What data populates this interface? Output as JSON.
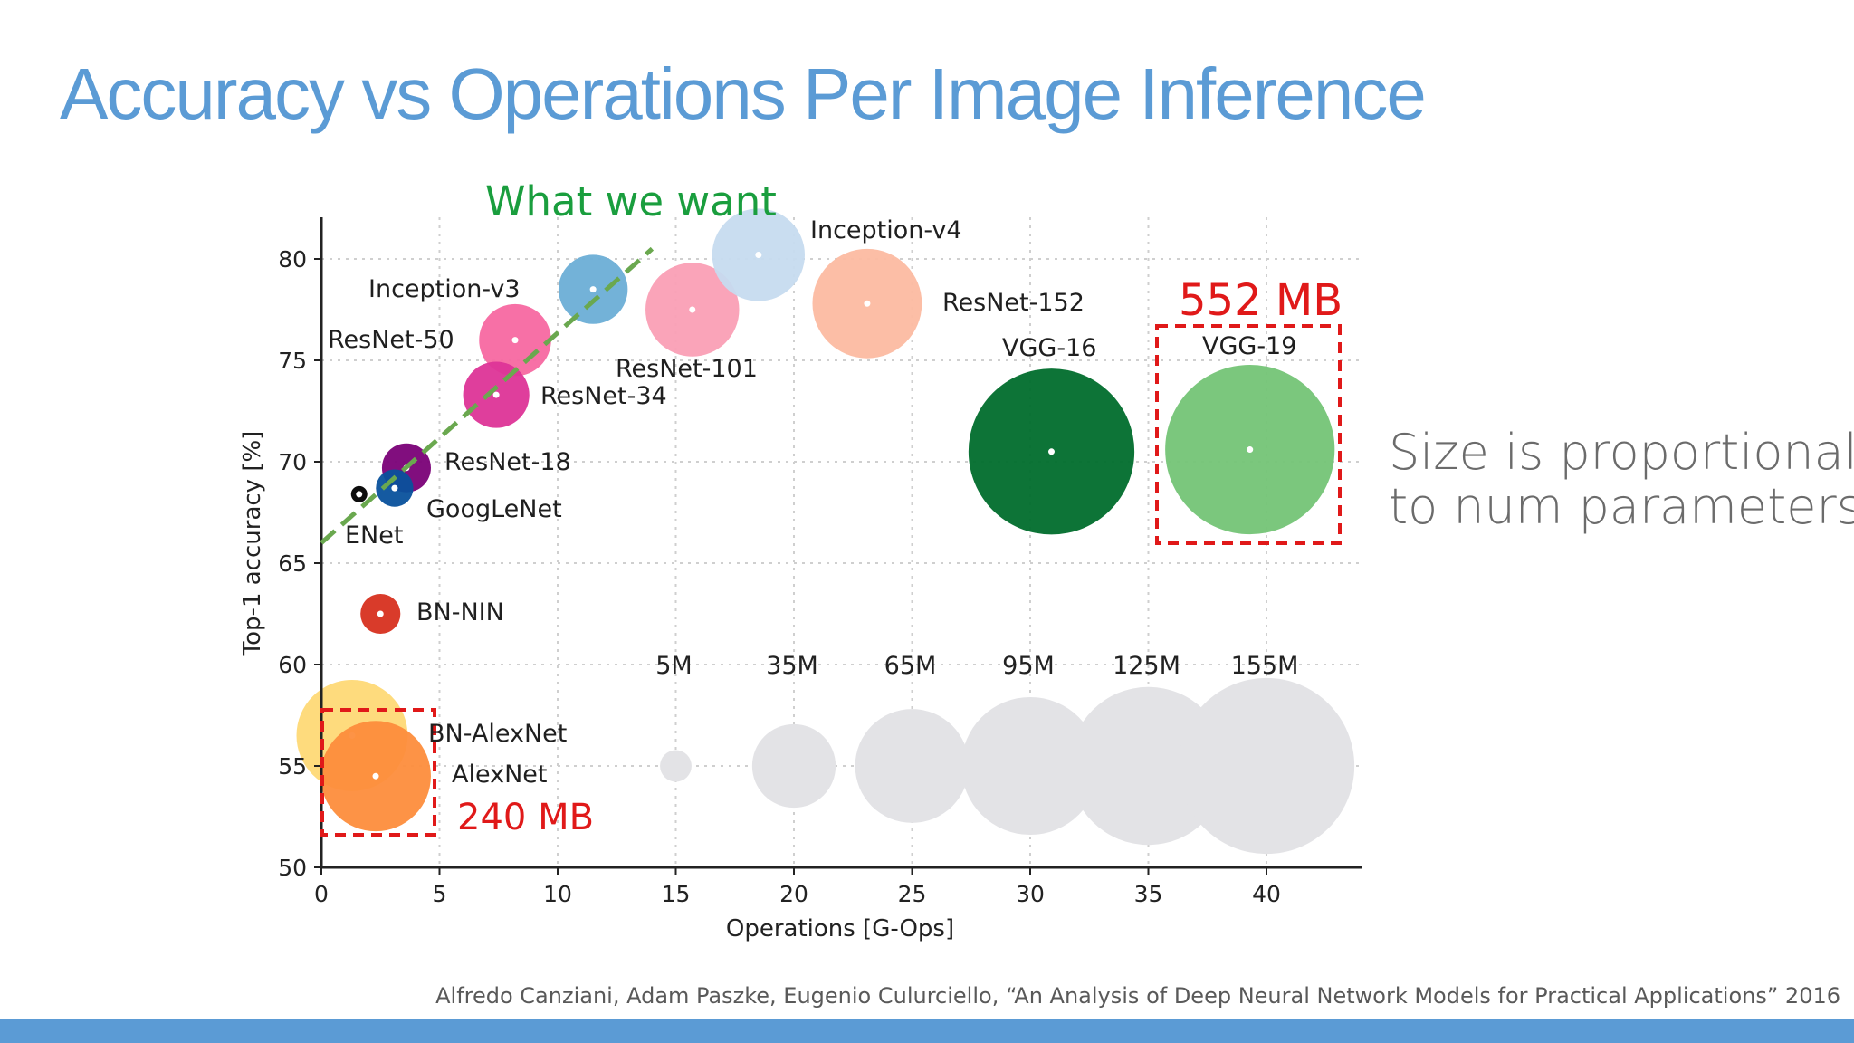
{
  "slide": {
    "title": "Accuracy vs Operations Per Image Inference",
    "side_note_line1": "Size is proportional",
    "side_note_line2": "to num parameters",
    "citation": "Alfredo Canziani, Adam Paszke, Eugenio Culurciello, “An Analysis of Deep Neural Network Models for Practical Applications” 2016",
    "colors": {
      "title": "#5b9bd5",
      "bar": "#5b9bd5",
      "annotation_red": "#e01919",
      "want_green": "#1a9e3e",
      "trend_line": "#6aa84f"
    }
  },
  "chart_data": {
    "type": "scatter",
    "xlabel": "Operations [G-Ops]",
    "ylabel": "Top-1 accuracy [%]",
    "xlim": [
      0,
      44
    ],
    "ylim": [
      50,
      82
    ],
    "xticks": [
      0,
      5,
      10,
      15,
      20,
      25,
      30,
      35,
      40
    ],
    "yticks": [
      50,
      55,
      60,
      65,
      70,
      75,
      80
    ],
    "grid": true,
    "series": [
      {
        "name": "Inception-v4",
        "x": 18.5,
        "y": 80.2,
        "params_M": 43,
        "color": "#c6dbef"
      },
      {
        "name": "Inception-v3",
        "x": 11.5,
        "y": 78.5,
        "params_M": 24,
        "color": "#6baed6"
      },
      {
        "name": "ResNet-152",
        "x": 23.1,
        "y": 77.8,
        "params_M": 60,
        "color": "#fcbba1"
      },
      {
        "name": "ResNet-101",
        "x": 15.7,
        "y": 77.5,
        "params_M": 44,
        "color": "#fa9fb5"
      },
      {
        "name": "ResNet-50",
        "x": 8.2,
        "y": 76.0,
        "params_M": 26,
        "color": "#f768a1"
      },
      {
        "name": "ResNet-34",
        "x": 7.4,
        "y": 73.3,
        "params_M": 22,
        "color": "#dd3497"
      },
      {
        "name": "ResNet-18",
        "x": 3.6,
        "y": 69.7,
        "params_M": 12,
        "color": "#7a0177"
      },
      {
        "name": "GoogLeNet",
        "x": 3.1,
        "y": 68.7,
        "params_M": 7,
        "color": "#08519c"
      },
      {
        "name": "ENet",
        "x": 1.6,
        "y": 68.4,
        "params_M": 0.4,
        "color": "#000000"
      },
      {
        "name": "BN-NIN",
        "x": 2.5,
        "y": 62.5,
        "params_M": 8,
        "color": "#d7301f"
      },
      {
        "name": "VGG-16",
        "x": 30.9,
        "y": 70.5,
        "params_M": 138,
        "color": "#006d2c"
      },
      {
        "name": "VGG-19",
        "x": 39.3,
        "y": 70.6,
        "params_M": 144,
        "color": "#74c476"
      },
      {
        "name": "BN-AlexNet",
        "x": 1.3,
        "y": 56.5,
        "params_M": 62,
        "color": "#fed976"
      },
      {
        "name": "AlexNet",
        "x": 2.3,
        "y": 54.5,
        "params_M": 61,
        "color": "#fd8d3c"
      }
    ],
    "size_legend": [
      {
        "label": "5M",
        "x": 15,
        "y": 55,
        "params_M": 5
      },
      {
        "label": "35M",
        "x": 20,
        "y": 55,
        "params_M": 35
      },
      {
        "label": "65M",
        "x": 25,
        "y": 55,
        "params_M": 65
      },
      {
        "label": "95M",
        "x": 30,
        "y": 55,
        "params_M": 95
      },
      {
        "label": "125M",
        "x": 35,
        "y": 55,
        "params_M": 125
      },
      {
        "label": "155M",
        "x": 40,
        "y": 55,
        "params_M": 155
      }
    ],
    "annotations": {
      "what_we_want": "What we want",
      "trend_from": [
        0,
        66
      ],
      "trend_to": [
        14,
        80.5
      ],
      "vgg19_size": "552 MB",
      "alexnet_size": "240 MB"
    }
  }
}
